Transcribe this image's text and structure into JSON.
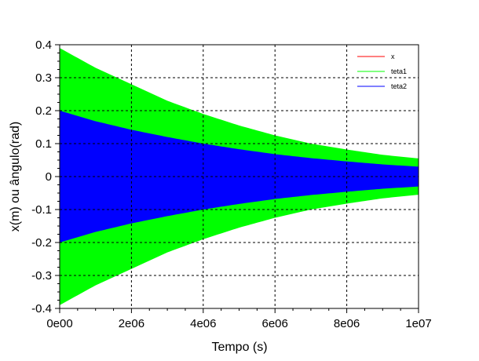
{
  "chart_data": {
    "type": "area",
    "title": "",
    "xlabel": "Tempo (s)",
    "ylabel": "x(m) ou ângulo(rad)",
    "xlim": [
      0,
      10000000
    ],
    "ylim": [
      -0.4,
      0.4
    ],
    "x_ticks": [
      0,
      2000000,
      4000000,
      6000000,
      8000000,
      10000000
    ],
    "x_tick_labels": [
      "0e00",
      "2e06",
      "4e06",
      "6e06",
      "8e06",
      "1e07"
    ],
    "y_ticks": [
      -0.4,
      -0.3,
      -0.2,
      -0.1,
      0,
      0.1,
      0.2,
      0.3,
      0.4
    ],
    "y_tick_labels": [
      "-0.4",
      "-0.3",
      "-0.2",
      "-0.1",
      "0",
      "0.1",
      "0.2",
      "0.3",
      "0.4"
    ],
    "grid": true,
    "legend_position": "top-right",
    "series": [
      {
        "name": "x",
        "color": "#ff0000",
        "envelope_x": [
          0
        ],
        "envelope_amplitude": [
          0
        ]
      },
      {
        "name": "teta1",
        "color": "#00ff00",
        "envelope_x": [
          0,
          1000000,
          2000000,
          3000000,
          4000000,
          5000000,
          6000000,
          7000000,
          8000000,
          9000000,
          10000000
        ],
        "envelope_amplitude": [
          0.39,
          0.33,
          0.28,
          0.23,
          0.19,
          0.155,
          0.125,
          0.1,
          0.082,
          0.066,
          0.055
        ]
      },
      {
        "name": "teta2",
        "color": "#0000ff",
        "envelope_x": [
          0,
          1000000,
          2000000,
          3000000,
          4000000,
          5000000,
          6000000,
          7000000,
          8000000,
          9000000,
          10000000
        ],
        "envelope_amplitude": [
          0.2,
          0.168,
          0.142,
          0.12,
          0.1,
          0.083,
          0.068,
          0.056,
          0.046,
          0.037,
          0.03
        ]
      }
    ]
  }
}
